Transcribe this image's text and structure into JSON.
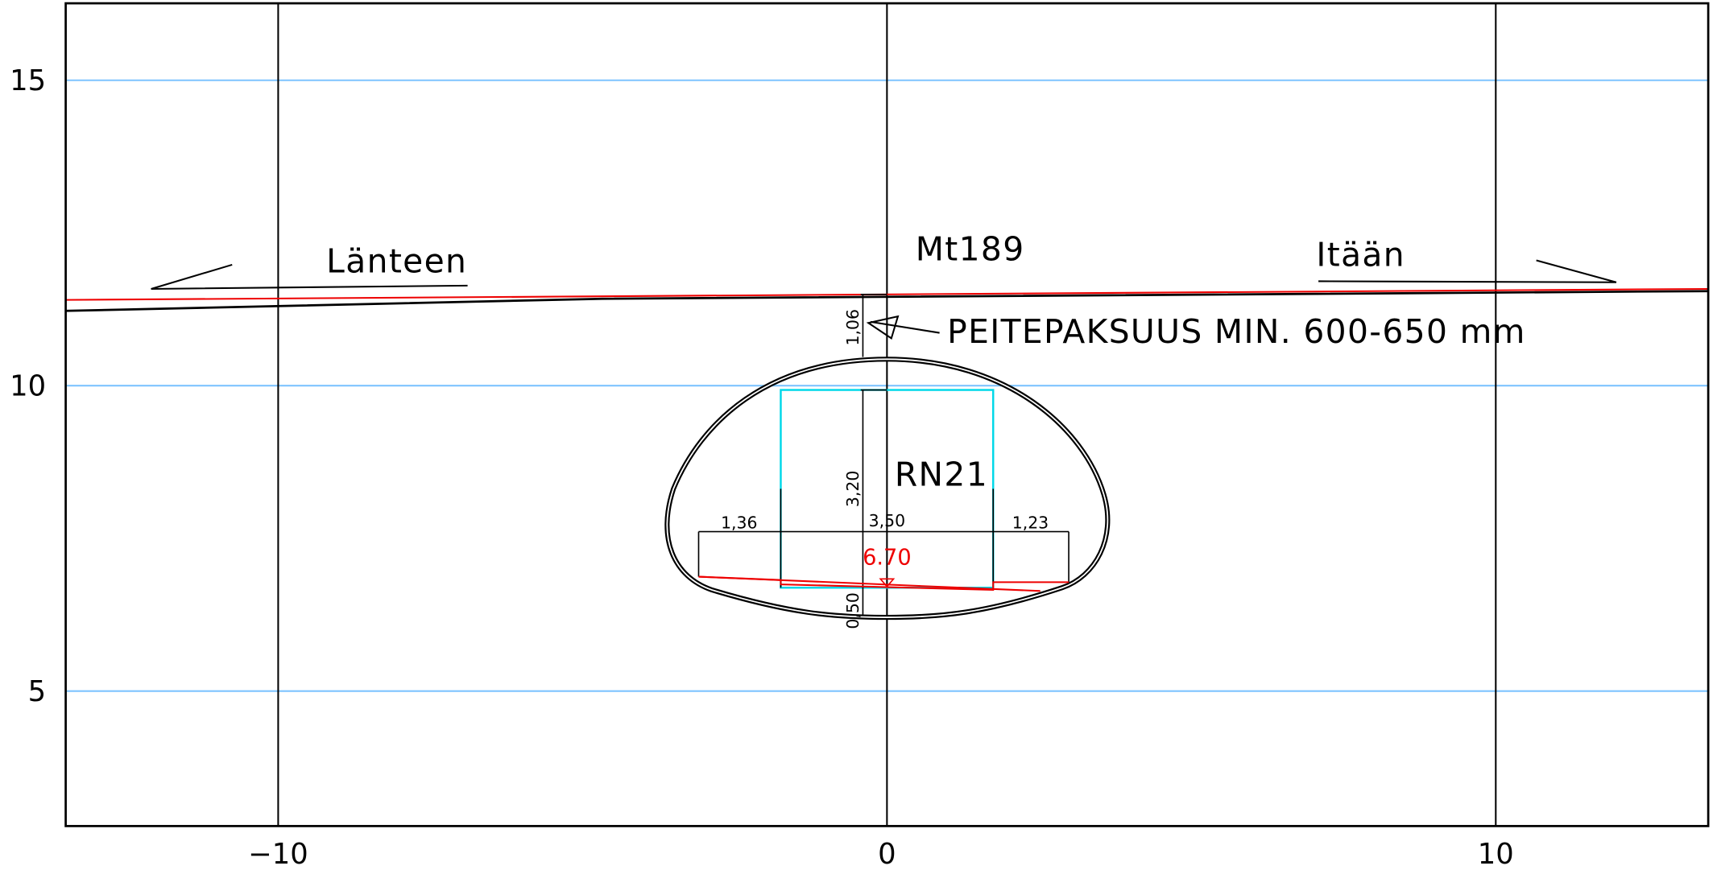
{
  "axes": {
    "xlim": [
      -13.49,
      13.49
    ],
    "ylim": [
      2.79,
      16.26
    ],
    "xticks": [
      {
        "value": -10,
        "label": "−10"
      },
      0,
      10
    ],
    "yticks": [
      5,
      10,
      15
    ]
  },
  "labels": {
    "west": "Länteen",
    "road": "Mt189",
    "east": "Itään",
    "cover": "PEITEPAKSUUS MIN. 600-650 mm",
    "tunnel": "RN21",
    "elevation": "6.70"
  },
  "dimensions": {
    "cover_depth": "1,06",
    "clear_height": "3,20",
    "left_width": "1,36",
    "lane_width": "3,50",
    "right_width": "1,23",
    "base": "0,50"
  }
}
